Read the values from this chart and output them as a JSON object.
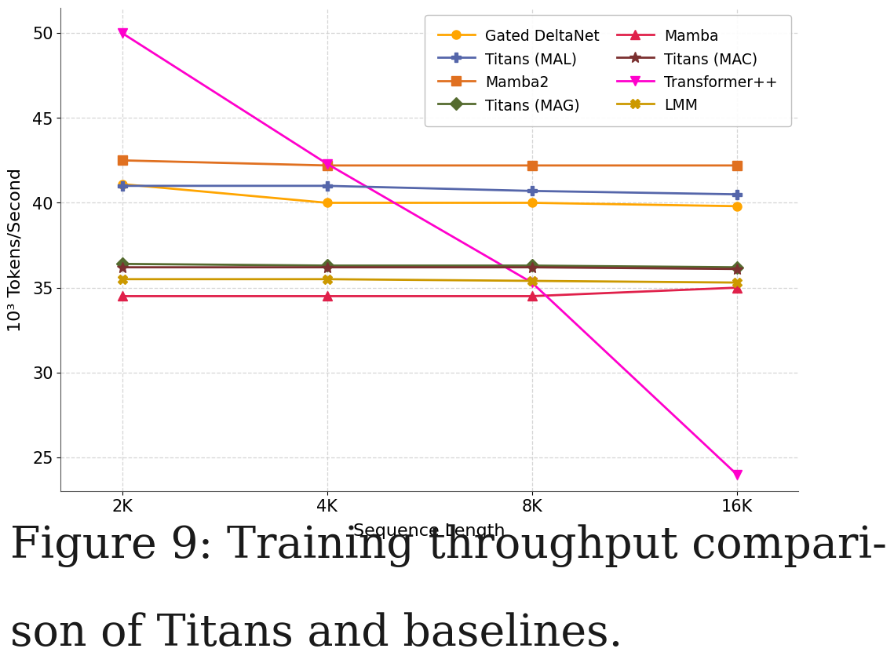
{
  "x_labels": [
    "2K",
    "4K",
    "8K",
    "16K"
  ],
  "x_values": [
    0,
    1,
    2,
    3
  ],
  "series": [
    {
      "name": "Gated DeltaNet",
      "color": "#FFA500",
      "marker": "o",
      "markersize": 8,
      "linewidth": 2.0,
      "values": [
        41.1,
        40.0,
        40.0,
        39.8
      ]
    },
    {
      "name": "Mamba2",
      "color": "#E07020",
      "marker": "s",
      "markersize": 8,
      "linewidth": 2.0,
      "values": [
        42.5,
        42.2,
        42.2,
        42.2
      ]
    },
    {
      "name": "Mamba",
      "color": "#E0204A",
      "marker": "^",
      "markersize": 8,
      "linewidth": 2.0,
      "values": [
        34.5,
        34.5,
        34.5,
        35.0
      ]
    },
    {
      "name": "Transformer++",
      "color": "#FF00CC",
      "marker": "v",
      "markersize": 8,
      "linewidth": 2.0,
      "values": [
        50.0,
        42.3,
        35.3,
        24.0
      ]
    },
    {
      "name": "Titans (MAL)",
      "color": "#5566AA",
      "marker": "P",
      "markersize": 8,
      "linewidth": 2.0,
      "values": [
        41.0,
        41.0,
        40.7,
        40.5
      ]
    },
    {
      "name": "Titans (MAG)",
      "color": "#556B2F",
      "marker": "D",
      "markersize": 8,
      "linewidth": 2.0,
      "values": [
        36.4,
        36.3,
        36.3,
        36.2
      ]
    },
    {
      "name": "Titans (MAC)",
      "color": "#7B3030",
      "marker": "*",
      "markersize": 10,
      "linewidth": 2.0,
      "values": [
        36.2,
        36.2,
        36.2,
        36.1
      ]
    },
    {
      "name": "LMM",
      "color": "#CC9900",
      "marker": "X",
      "markersize": 8,
      "linewidth": 2.0,
      "values": [
        35.5,
        35.5,
        35.4,
        35.3
      ]
    }
  ],
  "legend_order": [
    0,
    4,
    1,
    5,
    2,
    6,
    3,
    7
  ],
  "ylabel": "10³ Tokens/Second",
  "xlabel": "Sequence Length",
  "ylim": [
    23,
    51.5
  ],
  "yticks": [
    25,
    30,
    35,
    40,
    45,
    50
  ],
  "bg_color": "#FFFFFF",
  "grid_color": "#CCCCCC",
  "caption_line1": "Figure 9: Training throughput compari-",
  "caption_line2": "son of Titans and baselines.",
  "caption_fontsize": 40,
  "caption_color": "#1a1a1a"
}
